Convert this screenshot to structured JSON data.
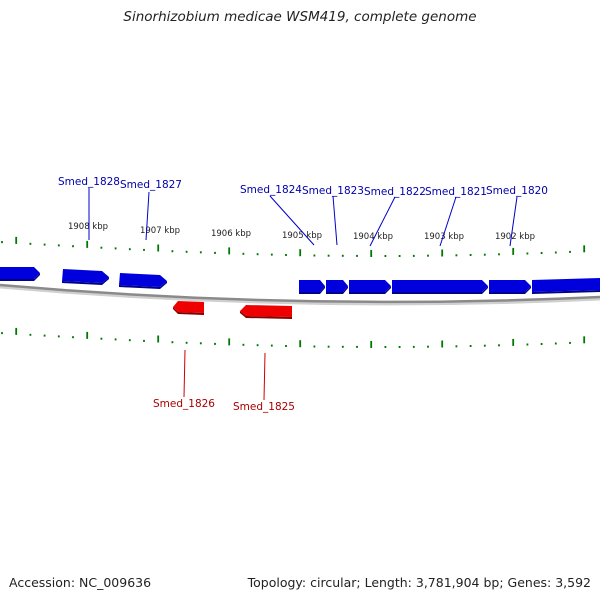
{
  "title": "Sinorhizobium medicae WSM419, complete genome",
  "footer": {
    "accession": "Accession: NC_009636",
    "summary": "Topology: circular; Length: 3,781,904 bp; Genes: 3,592"
  },
  "colors": {
    "forward_gene": "#0000ee",
    "reverse_gene": "#ee0000",
    "tick": "#007700",
    "backbone": "#888888"
  },
  "kbp_labels": [
    "1908 kbp",
    "1907 kbp",
    "1906 kbp",
    "1905 kbp",
    "1904 kbp",
    "1903 kbp",
    "1902 kbp"
  ],
  "forward_genes": [
    "Smed_1828",
    "Smed_1827",
    "Smed_1824",
    "Smed_1823",
    "Smed_1822",
    "Smed_1821",
    "Smed_1820"
  ],
  "reverse_genes": [
    "Smed_1826",
    "Smed_1825"
  ]
}
